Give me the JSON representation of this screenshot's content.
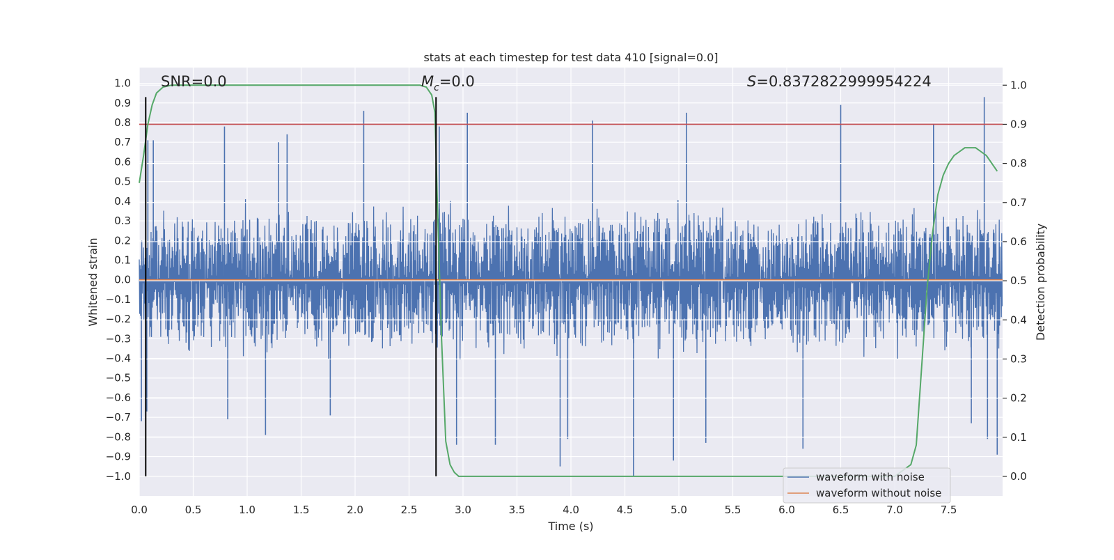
{
  "chart_data": {
    "type": "line",
    "title": "stats at each timestep for test data 410 [signal=0.0]",
    "xlabel": "Time (s)",
    "ylabel": "Whitened strain",
    "y2label": "Detection probability",
    "xlim": [
      0.0,
      8.0
    ],
    "ylim": [
      -1.1,
      1.08
    ],
    "y2lim": [
      -0.05,
      1.045
    ],
    "xticks": [
      0.0,
      0.5,
      1.0,
      1.5,
      2.0,
      2.5,
      3.0,
      3.5,
      4.0,
      4.5,
      5.0,
      5.5,
      6.0,
      6.5,
      7.0,
      7.5
    ],
    "xtick_labels": [
      "0.0",
      "0.5",
      "1.0",
      "1.5",
      "2.0",
      "2.5",
      "3.0",
      "3.5",
      "4.0",
      "4.5",
      "5.0",
      "5.5",
      "6.0",
      "6.5",
      "7.0",
      "7.5"
    ],
    "yticks": [
      -1.0,
      -0.9,
      -0.8,
      -0.7,
      -0.6,
      -0.5,
      -0.4,
      -0.3,
      -0.2,
      -0.1,
      0.0,
      0.1,
      0.2,
      0.3,
      0.4,
      0.5,
      0.6,
      0.7,
      0.8,
      0.9,
      1.0
    ],
    "ytick_labels": [
      "−1.0",
      "−0.9",
      "−0.8",
      "−0.7",
      "−0.6",
      "−0.5",
      "−0.4",
      "−0.3",
      "−0.2",
      "−0.1",
      "0.0",
      "0.1",
      "0.2",
      "0.3",
      "0.4",
      "0.5",
      "0.6",
      "0.7",
      "0.8",
      "0.9",
      "1.0"
    ],
    "y2ticks": [
      0.0,
      0.1,
      0.2,
      0.3,
      0.4,
      0.5,
      0.6,
      0.7,
      0.8,
      0.9,
      1.0
    ],
    "y2tick_labels": [
      "0.0",
      "0.1",
      "0.2",
      "0.3",
      "0.4",
      "0.5",
      "0.6",
      "0.7",
      "0.8",
      "0.9",
      "1.0"
    ],
    "annotations": {
      "snr": "SNR=0.0",
      "mc_symbol": "M",
      "mc_sub": "c",
      "mc_value": "=0.0",
      "s_symbol": "S",
      "s_value": "=0.8372822999954224"
    },
    "series": [
      {
        "name": "waveform with noise",
        "color": "#4c72b0",
        "kind": "noise",
        "envelope_pos": 0.42,
        "envelope_neg": -0.42,
        "sample_rate_hz": 256,
        "peaks": [
          {
            "t": 0.08,
            "v": 0.71
          },
          {
            "t": 0.13,
            "v": 0.71
          },
          {
            "t": 0.79,
            "v": 0.78
          },
          {
            "t": 1.29,
            "v": 0.7
          },
          {
            "t": 1.37,
            "v": 0.74
          },
          {
            "t": 2.08,
            "v": 0.86
          },
          {
            "t": 2.78,
            "v": 0.78
          },
          {
            "t": 3.04,
            "v": 0.85
          },
          {
            "t": 4.2,
            "v": 0.81
          },
          {
            "t": 5.07,
            "v": 0.85
          },
          {
            "t": 6.5,
            "v": 0.89
          },
          {
            "t": 7.36,
            "v": 0.79
          },
          {
            "t": 7.83,
            "v": 0.93
          },
          {
            "t": 0.02,
            "v": -0.72
          },
          {
            "t": 0.07,
            "v": -0.67
          },
          {
            "t": 0.82,
            "v": -0.71
          },
          {
            "t": 1.17,
            "v": -0.79
          },
          {
            "t": 1.77,
            "v": -0.69
          },
          {
            "t": 2.94,
            "v": -0.84
          },
          {
            "t": 3.3,
            "v": -0.84
          },
          {
            "t": 3.9,
            "v": -0.95
          },
          {
            "t": 3.97,
            "v": -0.81
          },
          {
            "t": 4.58,
            "v": -1.0
          },
          {
            "t": 4.95,
            "v": -0.92
          },
          {
            "t": 5.25,
            "v": -0.83
          },
          {
            "t": 6.15,
            "v": -0.86
          },
          {
            "t": 7.71,
            "v": -0.73
          },
          {
            "t": 7.86,
            "v": -0.81
          },
          {
            "t": 7.95,
            "v": -0.89
          }
        ]
      },
      {
        "name": "waveform without noise",
        "color": "#dd8452",
        "kind": "line",
        "value": 0.0
      },
      {
        "name": "detection probability",
        "color": "#55a868",
        "axis": "right",
        "in_legend": false,
        "x": [
          0.0,
          0.04,
          0.08,
          0.12,
          0.16,
          0.22,
          0.3,
          0.38,
          0.5,
          1.0,
          1.5,
          2.0,
          2.5,
          2.6,
          2.66,
          2.71,
          2.74,
          2.76,
          2.8,
          2.84,
          2.88,
          2.92,
          2.96,
          3.0,
          3.5,
          4.0,
          5.0,
          6.0,
          7.0,
          7.15,
          7.2,
          7.25,
          7.3,
          7.35,
          7.4,
          7.45,
          7.5,
          7.55,
          7.6,
          7.65,
          7.7,
          7.75,
          7.8,
          7.85,
          7.9,
          7.95
        ],
        "y": [
          0.75,
          0.82,
          0.9,
          0.95,
          0.98,
          0.995,
          1.0,
          1.0,
          1.0,
          1.0,
          1.0,
          1.0,
          1.0,
          1.0,
          0.995,
          0.975,
          0.93,
          0.72,
          0.36,
          0.09,
          0.03,
          0.01,
          0.0,
          0.0,
          0.0,
          0.0,
          0.0,
          0.0,
          0.0,
          0.03,
          0.08,
          0.28,
          0.48,
          0.62,
          0.72,
          0.77,
          0.8,
          0.82,
          0.83,
          0.84,
          0.84,
          0.84,
          0.83,
          0.82,
          0.8,
          0.78
        ]
      }
    ],
    "hlines": [
      {
        "name": "threshold",
        "axis": "right",
        "value": 0.9,
        "color": "#c44e52"
      }
    ],
    "vlines": [
      {
        "name": "marker-1",
        "x": 0.06,
        "ymin": -1.0,
        "ymax": 0.93,
        "color": "#000000"
      },
      {
        "name": "marker-2",
        "x": 2.75,
        "ymin": -1.0,
        "ymax": 0.93,
        "color": "#000000"
      }
    ],
    "legend": {
      "location": "lower-right",
      "entries": [
        {
          "label": "waveform with noise",
          "color": "#4c72b0"
        },
        {
          "label": "waveform without noise",
          "color": "#dd8452"
        }
      ]
    },
    "grid": true
  }
}
